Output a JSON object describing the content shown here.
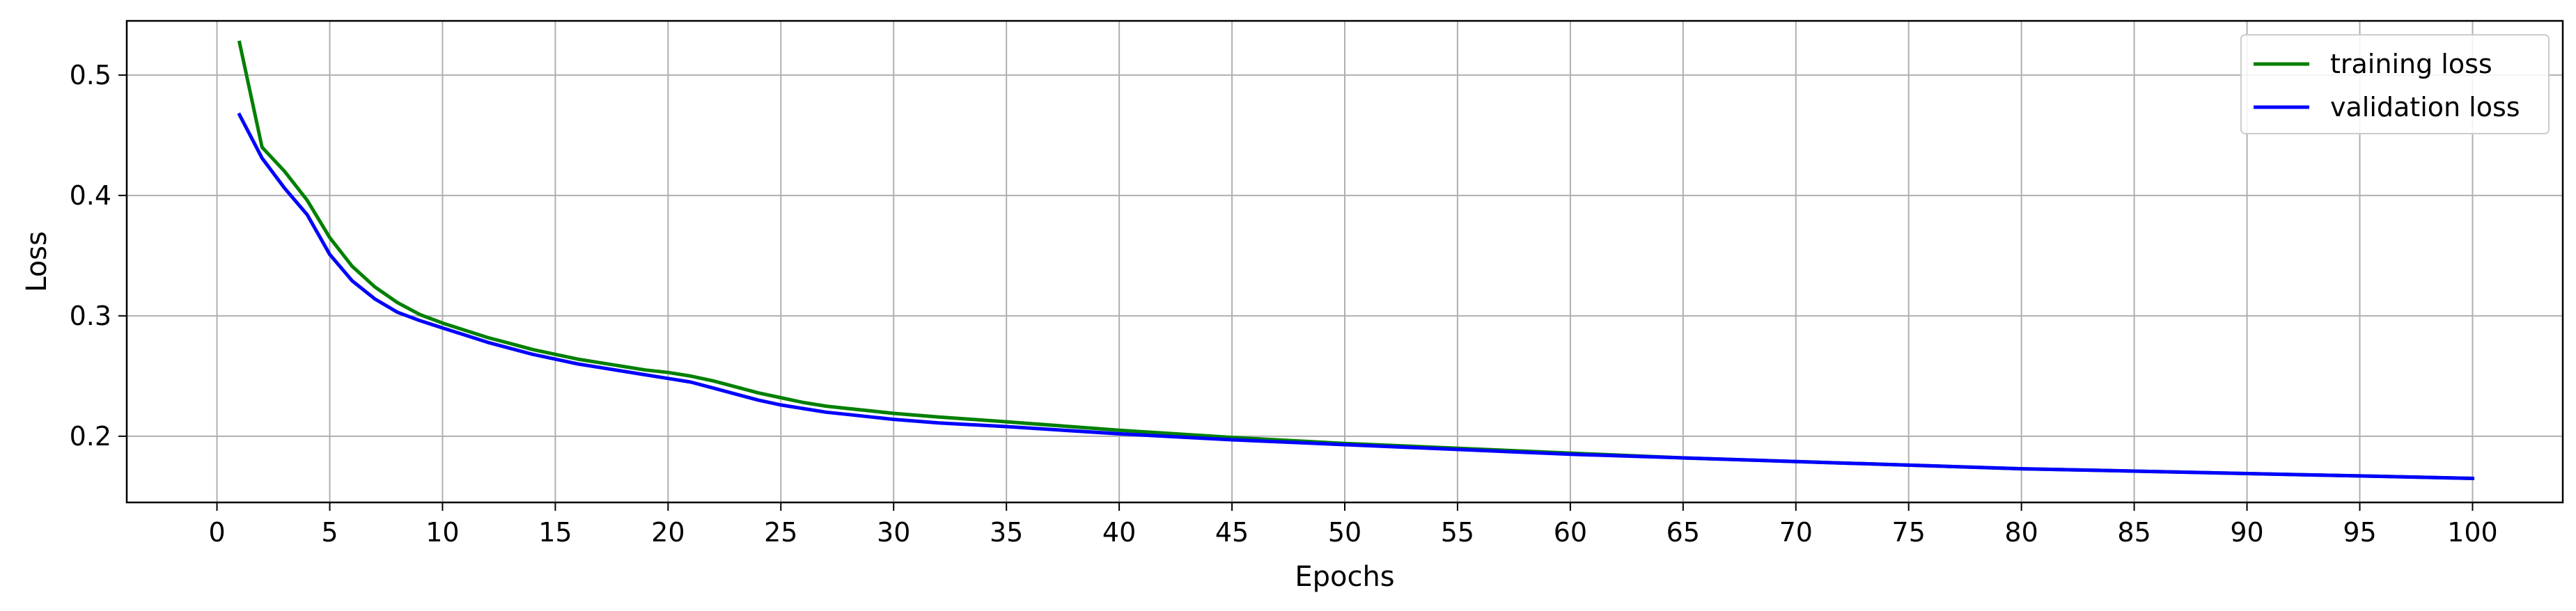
{
  "chart_data": {
    "type": "line",
    "title": "",
    "xlabel": "Epochs",
    "ylabel": "Loss",
    "xlim": [
      -4,
      104
    ],
    "ylim": [
      0.145,
      0.545
    ],
    "xticks": [
      0,
      5,
      10,
      15,
      20,
      25,
      30,
      35,
      40,
      45,
      50,
      55,
      60,
      65,
      70,
      75,
      80,
      85,
      90,
      95,
      100
    ],
    "yticks": [
      0.2,
      0.3,
      0.4,
      0.5
    ],
    "ytick_labels": [
      "0.2",
      "0.3",
      "0.4",
      "0.5"
    ],
    "grid": true,
    "legend_position": "top-right",
    "series": [
      {
        "name": "training loss",
        "color": "#008000",
        "x": [
          1,
          2,
          3,
          4,
          5,
          6,
          7,
          8,
          9,
          10,
          11,
          12,
          13,
          14,
          15,
          16,
          17,
          18,
          19,
          20,
          21,
          22,
          23,
          24,
          25,
          26,
          27,
          28,
          29,
          30,
          32,
          35,
          40,
          45,
          50,
          55,
          60,
          65,
          70,
          75,
          80,
          85,
          90,
          95,
          100
        ],
        "y": [
          0.527,
          0.44,
          0.42,
          0.396,
          0.365,
          0.341,
          0.324,
          0.311,
          0.301,
          0.294,
          0.288,
          0.282,
          0.277,
          0.272,
          0.268,
          0.264,
          0.261,
          0.258,
          0.255,
          0.253,
          0.25,
          0.246,
          0.241,
          0.236,
          0.232,
          0.228,
          0.225,
          0.223,
          0.221,
          0.219,
          0.216,
          0.212,
          0.205,
          0.199,
          0.194,
          0.19,
          0.186,
          0.182,
          0.179,
          0.176,
          0.173,
          0.171,
          0.169,
          0.167,
          0.165
        ]
      },
      {
        "name": "validation loss",
        "color": "#0000ff",
        "x": [
          1,
          2,
          3,
          4,
          5,
          6,
          7,
          8,
          9,
          10,
          11,
          12,
          13,
          14,
          15,
          16,
          17,
          18,
          19,
          20,
          21,
          22,
          23,
          24,
          25,
          26,
          27,
          28,
          29,
          30,
          32,
          35,
          40,
          45,
          50,
          55,
          60,
          65,
          70,
          75,
          80,
          85,
          90,
          95,
          100
        ],
        "y": [
          0.467,
          0.431,
          0.406,
          0.384,
          0.351,
          0.329,
          0.314,
          0.303,
          0.296,
          0.29,
          0.284,
          0.278,
          0.273,
          0.268,
          0.264,
          0.26,
          0.257,
          0.254,
          0.251,
          0.248,
          0.245,
          0.24,
          0.235,
          0.23,
          0.226,
          0.223,
          0.22,
          0.218,
          0.216,
          0.214,
          0.211,
          0.208,
          0.202,
          0.197,
          0.193,
          0.189,
          0.185,
          0.182,
          0.179,
          0.176,
          0.173,
          0.171,
          0.169,
          0.167,
          0.165
        ]
      }
    ]
  }
}
